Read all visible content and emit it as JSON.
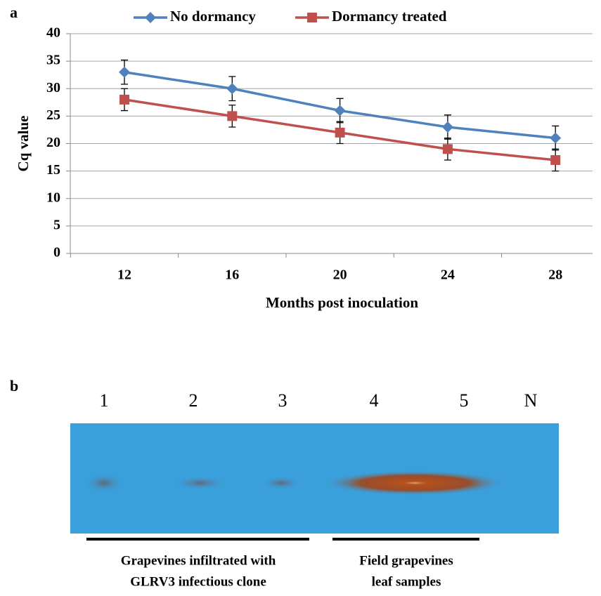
{
  "chart_data": {
    "type": "line",
    "label": "a",
    "categories": [
      "12",
      "16",
      "20",
      "24",
      "28"
    ],
    "series": [
      {
        "name": "No dormancy",
        "color": "#4f81bd",
        "marker": "diamond",
        "values": [
          33,
          30,
          26,
          23,
          21
        ],
        "errors": [
          2.2,
          2.2,
          2.2,
          2.2,
          2.2
        ]
      },
      {
        "name": "Dormancy treated",
        "color": "#c0504d",
        "marker": "square",
        "values": [
          28,
          25,
          22,
          19,
          17
        ],
        "errors": [
          2,
          2,
          2,
          2,
          2
        ]
      }
    ],
    "ylim": [
      0,
      40
    ],
    "yticks": [
      0,
      5,
      10,
      15,
      20,
      25,
      30,
      35,
      40
    ],
    "grid": true,
    "ylabel": "Cq value",
    "xlabel": "Months post inoculation",
    "legend": "top"
  },
  "panel_b": {
    "label": "b",
    "lanes": [
      "1",
      "2",
      "3",
      "4",
      "5",
      "N"
    ],
    "groups": [
      {
        "caption": [
          "Grapevines infiltrated with",
          "GLRV3 infectious clone"
        ]
      },
      {
        "caption": [
          "Field grapevines",
          "leaf samples"
        ]
      }
    ]
  }
}
